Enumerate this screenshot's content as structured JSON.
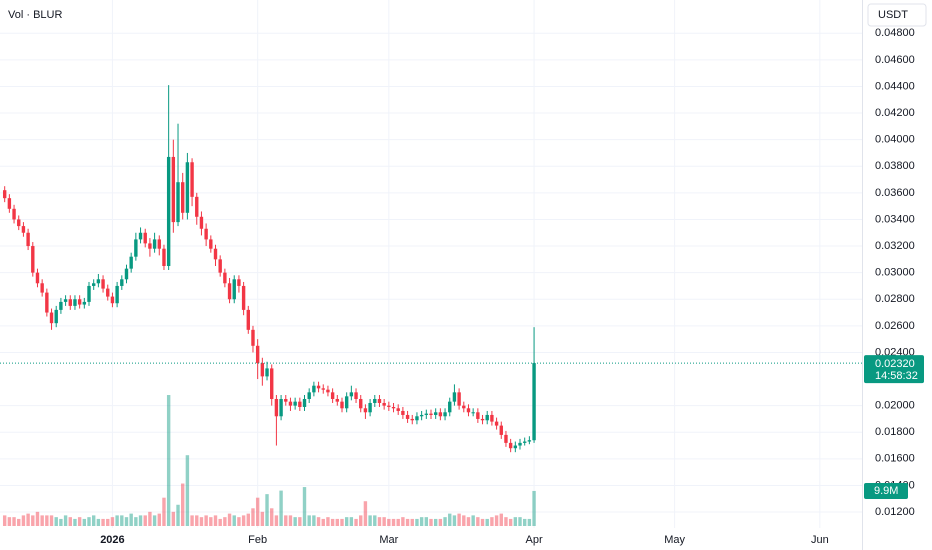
{
  "chart_data": {
    "type": "candlestick",
    "title": "Vol · BLUR",
    "currency": "USDT",
    "x": [
      -23,
      -22,
      -21,
      -20,
      -19,
      -18,
      -17,
      -16,
      -15,
      -14,
      -13,
      -12,
      -11,
      -10,
      -9,
      -8,
      -7,
      -6,
      -5,
      -4,
      -3,
      -2,
      -1,
      0,
      1,
      2,
      3,
      4,
      5,
      6,
      7,
      8,
      9,
      10,
      11,
      12,
      13,
      14,
      15,
      16,
      17,
      18,
      19,
      20,
      21,
      22,
      23,
      24,
      25,
      26,
      27,
      28,
      29,
      30,
      31,
      32,
      33,
      34,
      35,
      36,
      37,
      38,
      39,
      40,
      41,
      42,
      43,
      44,
      45,
      46,
      47,
      48,
      49,
      50,
      51,
      52,
      53,
      54,
      55,
      56,
      57,
      58,
      59,
      60,
      61,
      62,
      63,
      64,
      65,
      66,
      67,
      68,
      69,
      70,
      71,
      72,
      73,
      74,
      75,
      76,
      77,
      78,
      79,
      80,
      81,
      82,
      83,
      84,
      85,
      86,
      87,
      88,
      89,
      90
    ],
    "open": [
      0.0362,
      0.0356,
      0.0348,
      0.034,
      0.0335,
      0.033,
      0.032,
      0.03,
      0.0292,
      0.0285,
      0.027,
      0.0262,
      0.0272,
      0.0278,
      0.028,
      0.0275,
      0.028,
      0.0276,
      0.0278,
      0.029,
      0.0292,
      0.0295,
      0.0288,
      0.0282,
      0.0277,
      0.029,
      0.0295,
      0.0303,
      0.0312,
      0.0325,
      0.033,
      0.0322,
      0.0318,
      0.0325,
      0.0318,
      0.0305,
      0.0387,
      0.0338,
      0.0368,
      0.0345,
      0.0383,
      0.0357,
      0.0342,
      0.0333,
      0.0325,
      0.0318,
      0.031,
      0.03,
      0.0292,
      0.028,
      0.0295,
      0.029,
      0.0272,
      0.0257,
      0.0245,
      0.0232,
      0.0222,
      0.0228,
      0.0205,
      0.0192,
      0.0205,
      0.0203,
      0.02,
      0.0203,
      0.0199,
      0.0205,
      0.021,
      0.0215,
      0.0213,
      0.0212,
      0.021,
      0.0205,
      0.0203,
      0.0198,
      0.0207,
      0.021,
      0.0205,
      0.0198,
      0.0195,
      0.0202,
      0.0205,
      0.0202,
      0.02,
      0.0199,
      0.0198,
      0.0196,
      0.0193,
      0.019,
      0.0189,
      0.0192,
      0.0193,
      0.0194,
      0.0193,
      0.0195,
      0.0192,
      0.0195,
      0.0203,
      0.021,
      0.02,
      0.0198,
      0.0195,
      0.0195,
      0.019,
      0.0189,
      0.0193,
      0.0188,
      0.0185,
      0.0178,
      0.0172,
      0.0168,
      0.017,
      0.0172,
      0.0173,
      0.0174
    ],
    "high": [
      0.0365,
      0.0359,
      0.0351,
      0.0343,
      0.0338,
      0.0333,
      0.0323,
      0.0303,
      0.0295,
      0.0288,
      0.0273,
      0.0275,
      0.0281,
      0.0283,
      0.0283,
      0.0283,
      0.0283,
      0.0281,
      0.0293,
      0.0295,
      0.0299,
      0.0298,
      0.0291,
      0.0285,
      0.0293,
      0.0298,
      0.0306,
      0.0315,
      0.033,
      0.0334,
      0.0333,
      0.0326,
      0.033,
      0.0328,
      0.0321,
      0.0441,
      0.04,
      0.0412,
      0.0375,
      0.039,
      0.0386,
      0.036,
      0.0346,
      0.0337,
      0.0328,
      0.0321,
      0.0313,
      0.0303,
      0.0296,
      0.0298,
      0.0298,
      0.0293,
      0.0275,
      0.026,
      0.025,
      0.0236,
      0.0233,
      0.0231,
      0.0208,
      0.0208,
      0.0208,
      0.0206,
      0.0206,
      0.0206,
      0.0208,
      0.0213,
      0.0218,
      0.0218,
      0.0216,
      0.0215,
      0.0213,
      0.0208,
      0.0206,
      0.021,
      0.0215,
      0.0213,
      0.0208,
      0.0201,
      0.0205,
      0.0208,
      0.0208,
      0.0205,
      0.0203,
      0.0202,
      0.0201,
      0.0199,
      0.0196,
      0.0193,
      0.0195,
      0.0196,
      0.0197,
      0.0197,
      0.0198,
      0.0198,
      0.0198,
      0.0206,
      0.0216,
      0.0213,
      0.0203,
      0.0201,
      0.0198,
      0.0198,
      0.0193,
      0.0196,
      0.0196,
      0.0191,
      0.0188,
      0.0181,
      0.0175,
      0.0173,
      0.0175,
      0.0176,
      0.0177,
      0.0259
    ],
    "low": [
      0.0353,
      0.0345,
      0.0337,
      0.0332,
      0.0327,
      0.0317,
      0.0297,
      0.0289,
      0.0282,
      0.0267,
      0.0257,
      0.0259,
      0.0269,
      0.0275,
      0.0272,
      0.0272,
      0.0273,
      0.0273,
      0.0275,
      0.0287,
      0.0289,
      0.0285,
      0.0279,
      0.0274,
      0.0274,
      0.0287,
      0.0292,
      0.03,
      0.0309,
      0.0322,
      0.0319,
      0.0312,
      0.0315,
      0.0313,
      0.0302,
      0.0302,
      0.033,
      0.0335,
      0.034,
      0.034,
      0.035,
      0.0336,
      0.0328,
      0.032,
      0.0315,
      0.0305,
      0.0297,
      0.0289,
      0.0277,
      0.0277,
      0.0285,
      0.0268,
      0.0254,
      0.024,
      0.022,
      0.0215,
      0.0219,
      0.02,
      0.017,
      0.0189,
      0.02,
      0.0196,
      0.0197,
      0.0196,
      0.0196,
      0.0202,
      0.0207,
      0.021,
      0.0209,
      0.0207,
      0.0202,
      0.02,
      0.0195,
      0.0195,
      0.0204,
      0.0202,
      0.0195,
      0.019,
      0.0192,
      0.0199,
      0.0199,
      0.0197,
      0.0196,
      0.0195,
      0.0193,
      0.019,
      0.0187,
      0.0186,
      0.0186,
      0.0189,
      0.019,
      0.019,
      0.019,
      0.0189,
      0.0189,
      0.0192,
      0.02,
      0.0197,
      0.0195,
      0.0192,
      0.0192,
      0.0187,
      0.0186,
      0.0186,
      0.0185,
      0.0182,
      0.0175,
      0.0169,
      0.0165,
      0.0165,
      0.0167,
      0.017,
      0.0171,
      0.0172
    ],
    "close": [
      0.0356,
      0.0348,
      0.034,
      0.0335,
      0.033,
      0.032,
      0.03,
      0.0292,
      0.0285,
      0.027,
      0.0262,
      0.0272,
      0.0278,
      0.028,
      0.0275,
      0.028,
      0.0276,
      0.0278,
      0.029,
      0.0292,
      0.0295,
      0.0288,
      0.0282,
      0.0277,
      0.029,
      0.0295,
      0.0303,
      0.0312,
      0.0325,
      0.033,
      0.0322,
      0.0318,
      0.0325,
      0.0318,
      0.0305,
      0.0387,
      0.0338,
      0.0368,
      0.0345,
      0.0383,
      0.0357,
      0.0342,
      0.0333,
      0.0325,
      0.0318,
      0.031,
      0.03,
      0.0292,
      0.028,
      0.0295,
      0.029,
      0.0272,
      0.0257,
      0.0245,
      0.0232,
      0.0222,
      0.0228,
      0.0205,
      0.0192,
      0.0205,
      0.0203,
      0.02,
      0.0203,
      0.0199,
      0.0205,
      0.021,
      0.0215,
      0.0213,
      0.0212,
      0.021,
      0.0205,
      0.0203,
      0.0198,
      0.0207,
      0.021,
      0.0205,
      0.0198,
      0.0195,
      0.0202,
      0.0205,
      0.0202,
      0.02,
      0.0199,
      0.0198,
      0.0196,
      0.0193,
      0.019,
      0.0189,
      0.0192,
      0.0193,
      0.0194,
      0.0193,
      0.0195,
      0.0192,
      0.0195,
      0.0203,
      0.021,
      0.02,
      0.0198,
      0.0195,
      0.0195,
      0.019,
      0.0189,
      0.0193,
      0.0188,
      0.0185,
      0.0178,
      0.0172,
      0.0168,
      0.017,
      0.0172,
      0.0173,
      0.0174,
      0.0232
    ],
    "up_color": "#089981",
    "down_color": "#f23645",
    "volume": {
      "values": [
        3,
        2.5,
        2.5,
        2,
        3,
        3.5,
        3,
        4,
        3,
        3,
        3,
        2.5,
        2,
        3,
        2.5,
        2,
        2.5,
        2,
        2.5,
        3,
        2,
        2,
        2,
        2.5,
        3,
        3,
        2.5,
        3.5,
        2.5,
        3,
        3,
        4,
        3,
        3.5,
        8,
        37,
        4,
        6,
        12,
        20,
        3,
        3,
        2.5,
        3,
        2.5,
        3,
        2,
        2.5,
        3.5,
        3,
        2.5,
        3,
        3.5,
        5,
        8,
        4,
        9,
        5,
        3,
        10,
        3,
        3,
        2.5,
        2.5,
        11,
        3,
        3,
        2.5,
        2,
        2.5,
        2,
        2,
        2,
        2.5,
        2.5,
        2,
        3,
        7,
        3,
        3,
        2.5,
        2.5,
        2,
        2,
        2,
        2.5,
        2,
        2,
        2,
        2.5,
        2.5,
        2,
        2,
        2,
        2.5,
        3.5,
        3,
        3.5,
        3,
        2.5,
        3,
        2.5,
        2,
        2,
        2.5,
        3,
        3.5,
        2.5,
        2,
        2.5,
        2.5,
        2,
        2,
        9.9
      ],
      "value_labels": [
        null,
        null,
        null,
        null,
        null,
        null,
        null,
        null,
        null,
        null,
        null,
        null,
        null,
        null,
        null,
        null,
        null,
        null,
        null,
        null,
        null,
        null,
        null,
        null,
        null,
        null,
        null,
        null,
        null,
        null,
        null,
        null,
        null,
        null,
        null,
        null,
        null,
        null,
        null,
        null,
        null,
        null,
        null,
        null,
        null,
        null,
        null,
        null,
        null,
        null,
        null,
        null,
        null,
        null,
        null,
        null,
        null,
        null,
        null,
        null,
        null,
        null,
        null,
        null,
        null,
        null,
        null,
        null,
        null,
        null,
        null,
        null,
        null,
        null,
        null,
        null,
        null,
        null,
        null,
        null,
        null,
        null,
        null,
        null,
        null,
        null,
        null,
        null,
        null,
        null,
        null,
        null,
        null,
        null,
        null,
        null,
        null,
        null,
        null,
        null,
        null,
        null,
        null,
        null,
        null,
        null,
        null,
        null,
        null,
        null,
        null,
        null,
        null,
        "9.9M"
      ]
    },
    "xlim": [
      -24,
      160
    ],
    "xticks": [
      {
        "value": 0,
        "label": "2026"
      },
      {
        "value": 31,
        "label": "Feb"
      },
      {
        "value": 59,
        "label": "Mar"
      },
      {
        "value": 90,
        "label": "Apr"
      },
      {
        "value": 120,
        "label": "May"
      },
      {
        "value": 151,
        "label": "Jun"
      }
    ],
    "ylim": [
      0.0108,
      0.0505
    ],
    "yticks": [
      {
        "value": 0.012,
        "label": "0.01200"
      },
      {
        "value": 0.014,
        "label": "0.01400"
      },
      {
        "value": 0.016,
        "label": "0.01600"
      },
      {
        "value": 0.018,
        "label": "0.01800"
      },
      {
        "value": 0.02,
        "label": "0.02000"
      },
      {
        "value": 0.024,
        "label": "0.02400"
      },
      {
        "value": 0.026,
        "label": "0.02600"
      },
      {
        "value": 0.028,
        "label": "0.02800"
      },
      {
        "value": 0.03,
        "label": "0.03000"
      },
      {
        "value": 0.032,
        "label": "0.03200"
      },
      {
        "value": 0.034,
        "label": "0.03400"
      },
      {
        "value": 0.036,
        "label": "0.03600"
      },
      {
        "value": 0.038,
        "label": "0.03800"
      },
      {
        "value": 0.04,
        "label": "0.04000"
      },
      {
        "value": 0.042,
        "label": "0.04200"
      },
      {
        "value": 0.044,
        "label": "0.04400"
      },
      {
        "value": 0.046,
        "label": "0.04600"
      },
      {
        "value": 0.048,
        "label": "0.04800"
      }
    ],
    "grid": true,
    "last_price": {
      "value": 0.0232,
      "label": "0.02320"
    },
    "countdown": "14:58:32"
  }
}
